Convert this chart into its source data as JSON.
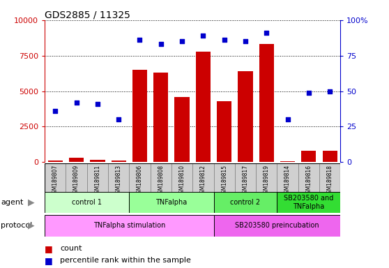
{
  "title": "GDS2885 / 11325",
  "samples": [
    "GSM189807",
    "GSM189809",
    "GSM189811",
    "GSM189813",
    "GSM189806",
    "GSM189808",
    "GSM189810",
    "GSM189812",
    "GSM189815",
    "GSM189817",
    "GSM189819",
    "GSM189814",
    "GSM189816",
    "GSM189818"
  ],
  "counts": [
    120,
    300,
    150,
    100,
    6500,
    6300,
    4600,
    7800,
    4300,
    6400,
    8300,
    50,
    800,
    800
  ],
  "percentile": [
    36,
    42,
    41,
    30,
    86,
    83,
    85,
    89,
    86,
    85,
    91,
    30,
    49,
    50
  ],
  "ylim_left": [
    0,
    10000
  ],
  "ylim_right": [
    0,
    100
  ],
  "yticks_left": [
    0,
    2500,
    5000,
    7500,
    10000
  ],
  "yticks_right": [
    0,
    25,
    50,
    75,
    100
  ],
  "bar_color": "#cc0000",
  "dot_color": "#0000cc",
  "agent_groups": [
    {
      "label": "control 1",
      "start": 0,
      "end": 4,
      "color": "#ccffcc"
    },
    {
      "label": "TNFalpha",
      "start": 4,
      "end": 8,
      "color": "#99ff99"
    },
    {
      "label": "control 2",
      "start": 8,
      "end": 11,
      "color": "#66ee66"
    },
    {
      "label": "SB203580 and\nTNFalpha",
      "start": 11,
      "end": 14,
      "color": "#33dd33"
    }
  ],
  "protocol_groups": [
    {
      "label": "TNFalpha stimulation",
      "start": 0,
      "end": 8,
      "color": "#ff99ff"
    },
    {
      "label": "SB203580 preincubation",
      "start": 8,
      "end": 14,
      "color": "#ee66ee"
    }
  ],
  "tick_color_left": "#cc0000",
  "tick_color_right": "#0000cc",
  "legend_count_color": "#cc0000",
  "legend_dot_color": "#0000cc",
  "xtick_bg_color": "#d0d0d0",
  "xtick_border_color": "#888888"
}
